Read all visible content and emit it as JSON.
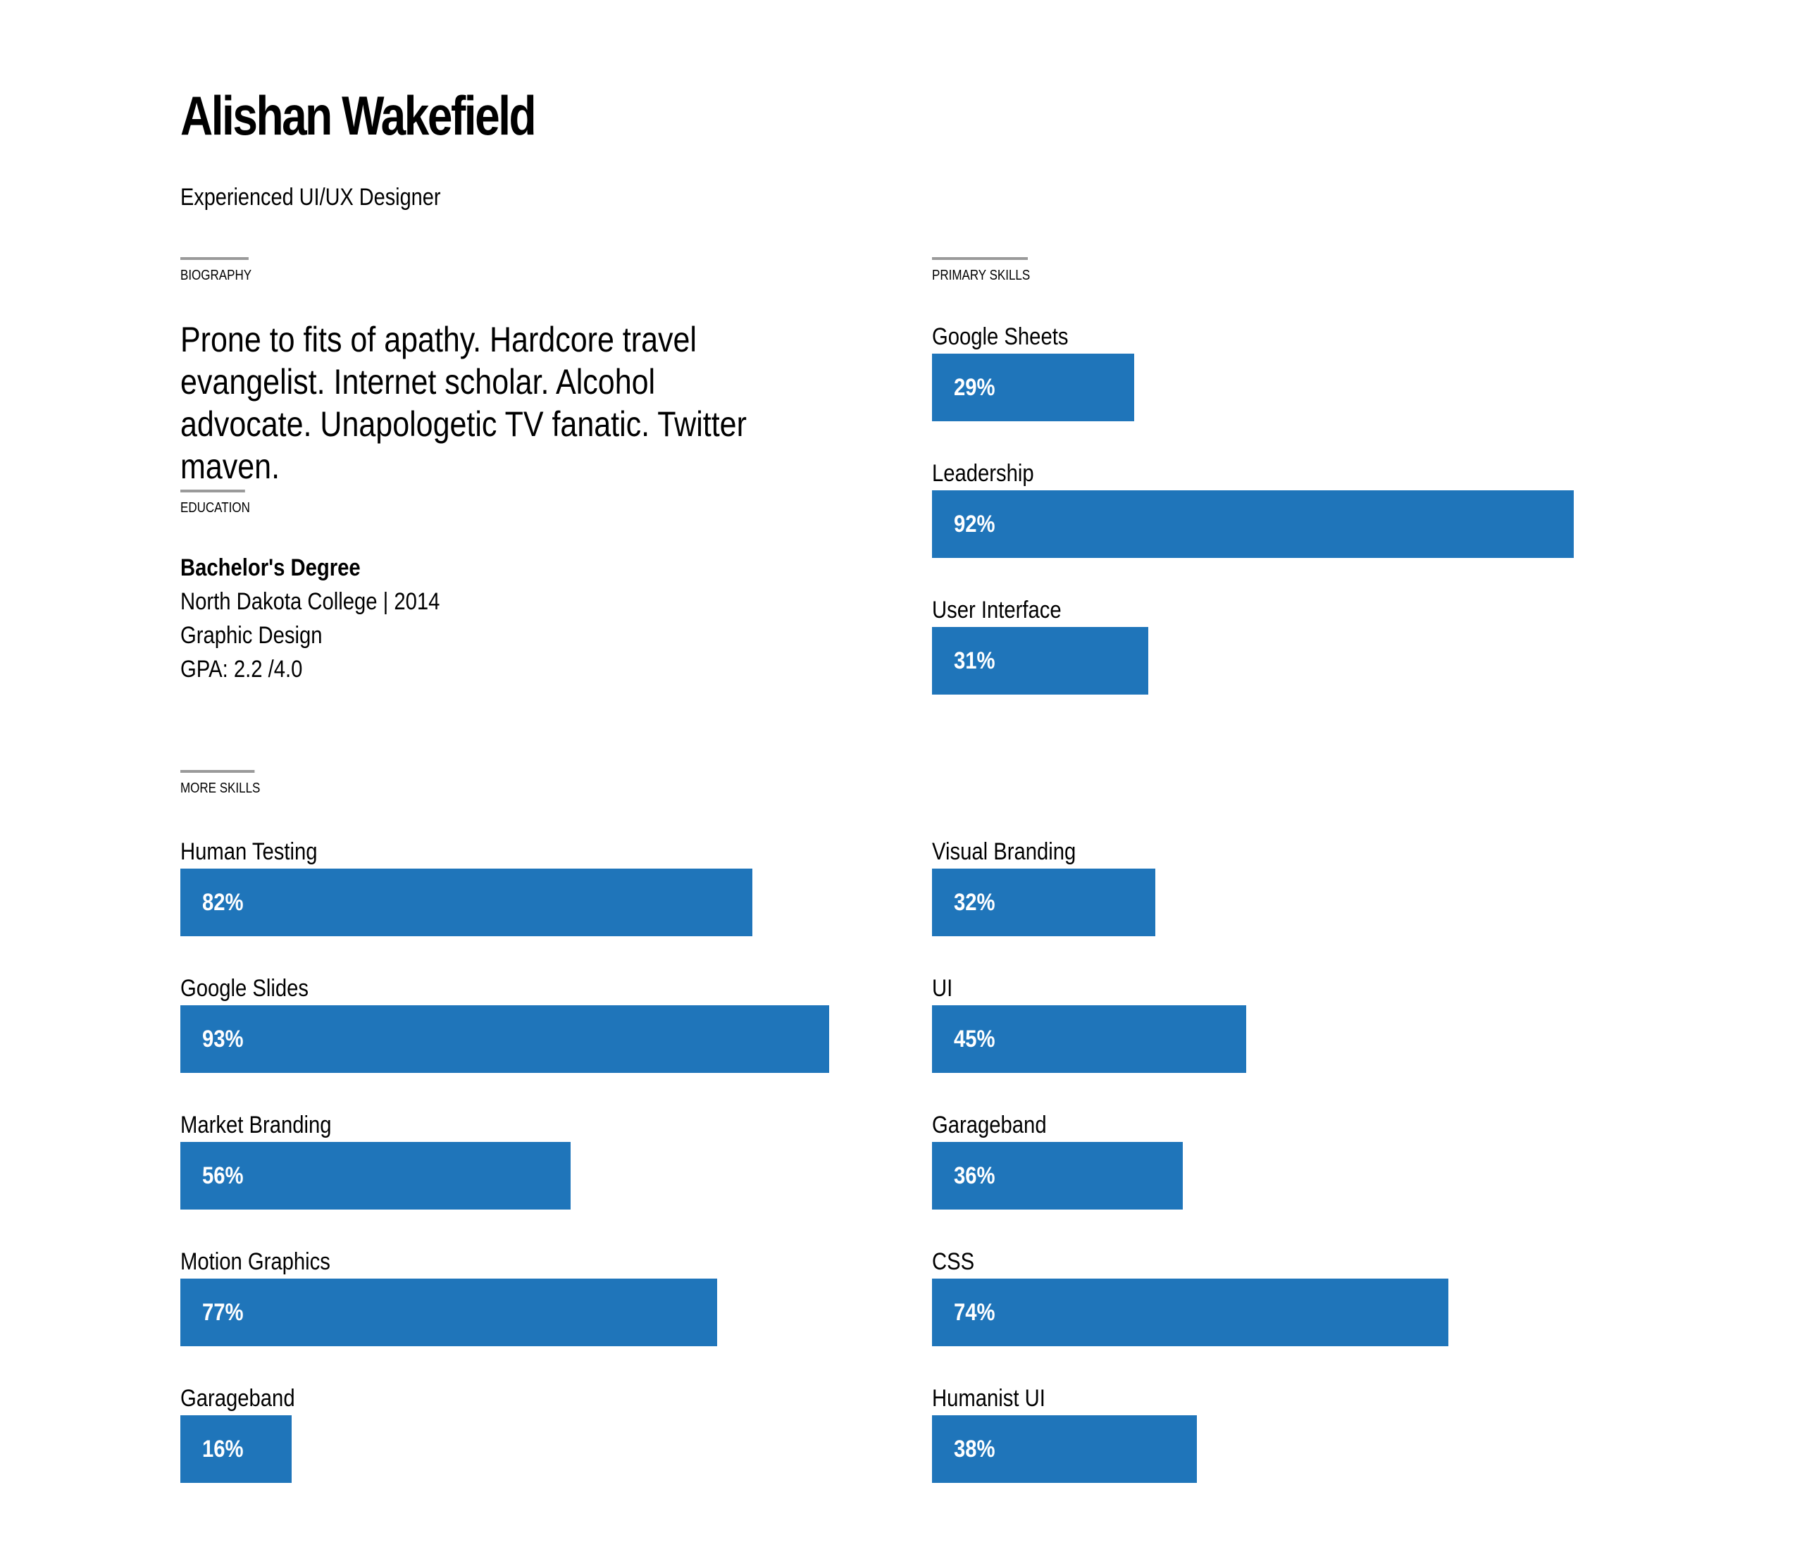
{
  "profile": {
    "name": "Alishan Wakefield",
    "title": "Experienced UI/UX Designer"
  },
  "sections": {
    "biography_label": "BIOGRAPHY",
    "education_label": "EDUCATION",
    "primary_skills_label": "PRIMARY SKILLS",
    "more_skills_label": "MORE SKILLS"
  },
  "biography": "Prone to fits of apathy. Hardcore travel evangelist. Internet scholar. Alcohol advocate. Unapologetic TV fanatic. Twitter maven.",
  "education": {
    "degree": "Bachelor's Degree",
    "school": "North Dakota College | 2014",
    "major": "Graphic Design",
    "gpa": "GPA: 2.2 /4.0"
  },
  "colors": {
    "bar": "#1f75ba",
    "bar_text": "#ffffff",
    "rule": "#9a9a9a"
  },
  "primary_skills": [
    {
      "name": "Google Sheets",
      "label": "29%",
      "value": 29
    },
    {
      "name": "Leadership",
      "label": "92%",
      "value": 92
    },
    {
      "name": "User Interface",
      "label": "31%",
      "value": 31
    }
  ],
  "more_skills_left": [
    {
      "name": "Human Testing",
      "label": "82%",
      "value": 82
    },
    {
      "name": "Google Slides",
      "label": "93%",
      "value": 93
    },
    {
      "name": "Market Branding",
      "label": "56%",
      "value": 56
    },
    {
      "name": "Motion Graphics",
      "label": "77%",
      "value": 77
    },
    {
      "name": "Garageband",
      "label": "16%",
      "value": 16
    }
  ],
  "more_skills_right": [
    {
      "name": "Visual Branding",
      "label": "32%",
      "value": 32
    },
    {
      "name": "UI",
      "label": "45%",
      "value": 45
    },
    {
      "name": "Garageband",
      "label": "36%",
      "value": 36
    },
    {
      "name": "CSS",
      "label": "74%",
      "value": 74
    },
    {
      "name": "Humanist UI",
      "label": "38%",
      "value": 38
    }
  ]
}
